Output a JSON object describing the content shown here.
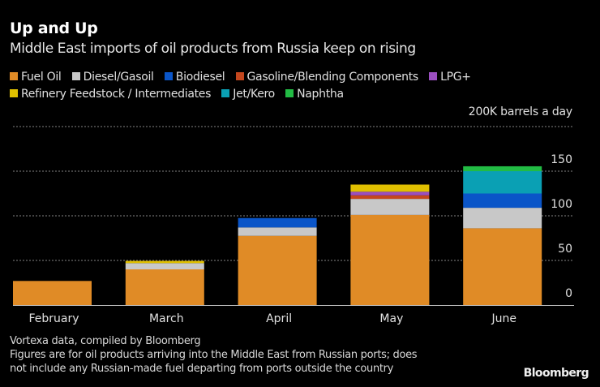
{
  "header": {
    "title": "Up and Up",
    "subtitle": "Middle East imports of oil products from Russia keep on rising"
  },
  "unit_label": "200K barrels a day",
  "footer": {
    "source": "Vortexa data, compiled by Bloomberg",
    "note_line1": "Figures are for oil products arriving into the Middle East from Russian ports; does",
    "note_line2": "not include any Russian-made fuel departing from ports outside the country",
    "brand": "Bloomberg"
  },
  "chart_data": {
    "type": "bar",
    "stacked": true,
    "title": "Up and Up",
    "subtitle": "Middle East imports of oil products from Russia keep on rising",
    "xlabel": "",
    "ylabel": "K barrels a day",
    "ylim": [
      0,
      200
    ],
    "yticks": [
      0,
      50,
      100,
      150
    ],
    "ytick_labels": [
      "0",
      "50",
      "100",
      "150"
    ],
    "top_label": "200K barrels a day",
    "grid": true,
    "legend_position": "top",
    "categories": [
      "February",
      "March",
      "April",
      "May",
      "June"
    ],
    "series": [
      {
        "name": "Fuel Oil",
        "color": "#e08b26",
        "values": [
          27,
          40,
          77.5,
          101,
          86
        ]
      },
      {
        "name": "Diesel/Gasoil",
        "color": "#c8c8c8",
        "values": [
          0,
          7,
          9.5,
          18,
          23
        ]
      },
      {
        "name": "Biodiesel",
        "color": "#0a55c8",
        "values": [
          0,
          0,
          10.5,
          0,
          16
        ]
      },
      {
        "name": "Gasoline/Blending Components",
        "color": "#c4471e",
        "values": [
          0,
          0,
          0,
          4,
          0
        ]
      },
      {
        "name": "LPG+",
        "color": "#9b4fc0",
        "values": [
          0,
          0,
          0,
          4,
          0
        ]
      },
      {
        "name": "Refinery Feedstock / Intermediates",
        "color": "#e0c000",
        "values": [
          0,
          2.5,
          0,
          8,
          0
        ]
      },
      {
        "name": "Jet/Kero",
        "color": "#0aa0b4",
        "values": [
          0,
          0,
          0,
          0,
          25
        ]
      },
      {
        "name": "Naphtha",
        "color": "#22bb44",
        "values": [
          0,
          0,
          0,
          0,
          5.5
        ]
      }
    ],
    "legend_rows": [
      [
        0,
        1,
        2,
        3,
        4
      ],
      [
        5,
        6,
        7
      ]
    ]
  }
}
